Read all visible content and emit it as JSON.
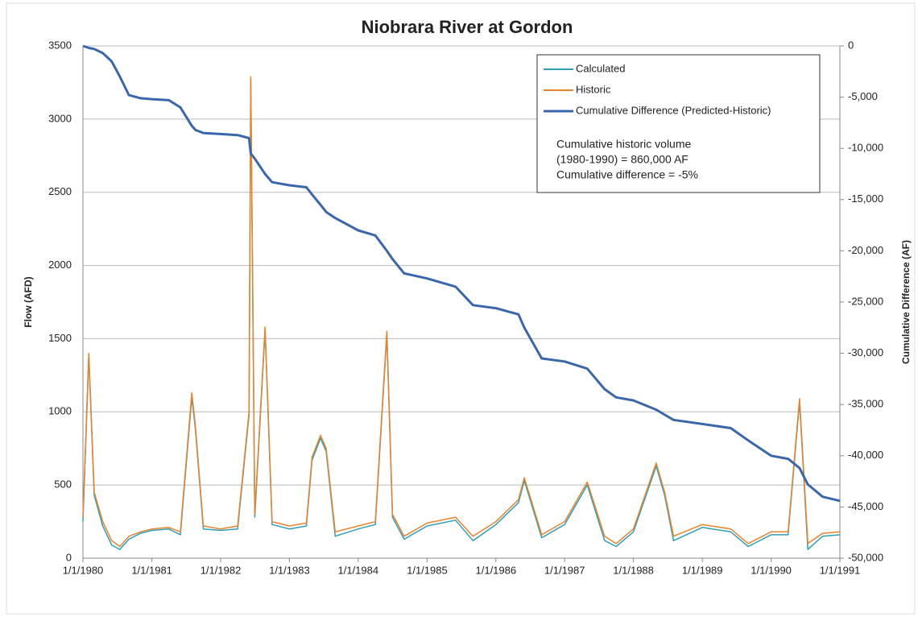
{
  "chart_data": {
    "type": "line",
    "title": "Niobrara River at Gordon",
    "ylabel": "Flow (AFD)",
    "y2label": "Cumulative Difference (AF)",
    "annotation": [
      "Cumulative historic volume",
      "(1980-1990) = 860,000 AF",
      "Cumulative difference = -5%"
    ],
    "legend": "upper right",
    "grid": true,
    "x": [
      "1/1/1980",
      "2/1/1980",
      "3/1/1980",
      "4/15/1980",
      "6/1/1980",
      "7/15/1980",
      "9/1/1980",
      "11/1/1980",
      "1/1/1981",
      "4/1/1981",
      "6/1/1981",
      "8/1/1981",
      "8/20/1981",
      "10/1/1981",
      "1/1/1982",
      "4/1/1982",
      "6/1/1982",
      "6/10/1982",
      "7/1/1982",
      "8/25/1982",
      "10/1/1982",
      "1/1/1983",
      "4/1/1983",
      "5/1/1983",
      "6/15/1983",
      "7/15/1983",
      "9/1/1983",
      "1/1/1984",
      "4/1/1984",
      "6/1/1984",
      "7/1/1984",
      "9/1/1984",
      "1/1/1985",
      "6/1/1985",
      "9/1/1985",
      "1/1/1986",
      "5/1/1986",
      "6/1/1986",
      "9/1/1986",
      "1/1/1987",
      "5/1/1987",
      "8/1/1987",
      "10/1/1987",
      "1/1/1988",
      "5/1/1988",
      "6/15/1988",
      "8/1/1988",
      "1/1/1989",
      "6/1/1989",
      "9/1/1989",
      "1/1/1990",
      "4/1/1990",
      "6/1/1990",
      "7/15/1990",
      "10/1/1990",
      "1/1/1991"
    ],
    "series": [
      {
        "name": "Calculated",
        "color": "#2e9fb5",
        "values": [
          250,
          1380,
          430,
          220,
          90,
          60,
          130,
          170,
          190,
          200,
          160,
          1100,
          880,
          200,
          190,
          200,
          980,
          3270,
          280,
          1560,
          230,
          200,
          220,
          670,
          820,
          730,
          150,
          200,
          230,
          1530,
          280,
          130,
          220,
          260,
          120,
          230,
          380,
          530,
          140,
          230,
          500,
          120,
          80,
          180,
          630,
          430,
          120,
          210,
          180,
          80,
          160,
          160,
          1070,
          60,
          150,
          160
        ]
      },
      {
        "name": "Historic",
        "color": "#e8832a",
        "values": [
          280,
          1400,
          450,
          250,
          120,
          80,
          150,
          180,
          200,
          210,
          180,
          1130,
          900,
          220,
          200,
          220,
          1000,
          3290,
          300,
          1580,
          250,
          220,
          240,
          690,
          840,
          750,
          180,
          220,
          250,
          1550,
          300,
          150,
          240,
          280,
          150,
          250,
          400,
          550,
          160,
          250,
          520,
          150,
          100,
          200,
          650,
          450,
          150,
          230,
          200,
          100,
          180,
          180,
          1090,
          100,
          170,
          180
        ]
      },
      {
        "name": "Cumulative Difference (Predicted-Historic)",
        "color": "#3a67ac",
        "axis": "y2",
        "values": [
          0,
          -200,
          -300,
          -700,
          -1500,
          -3000,
          -4800,
          -5100,
          -5200,
          -5300,
          -6000,
          -7800,
          -8200,
          -8500,
          -8600,
          -8700,
          -9000,
          -10500,
          -11000,
          -12500,
          -13300,
          -13600,
          -13800,
          -14500,
          -15500,
          -16200,
          -16800,
          -18000,
          -18500,
          -20000,
          -20800,
          -22200,
          -22700,
          -23500,
          -25300,
          -25600,
          -26200,
          -27500,
          -30500,
          -30800,
          -31500,
          -33500,
          -34300,
          -34600,
          -35500,
          -36000,
          -36500,
          -36900,
          -37300,
          -38500,
          -40000,
          -40300,
          -41200,
          -42800,
          -44000,
          -44400
        ]
      }
    ],
    "xlim": [
      "1/1/1980",
      "1/1/1991"
    ],
    "xticks": [
      "1/1/1980",
      "1/1/1981",
      "1/1/1982",
      "1/1/1983",
      "1/1/1984",
      "1/1/1985",
      "1/1/1986",
      "1/1/1987",
      "1/1/1988",
      "1/1/1989",
      "1/1/1990",
      "1/1/1991"
    ],
    "ylim": [
      0,
      3500
    ],
    "yticks": [
      0,
      500,
      1000,
      1500,
      2000,
      2500,
      3000,
      3500
    ],
    "y2lim": [
      -50000,
      0
    ],
    "y2ticks": [
      {
        "value": -50000,
        "label": "-50,000"
      },
      {
        "value": -45000,
        "label": "-45,000"
      },
      {
        "value": -40000,
        "label": "-40,000"
      },
      {
        "value": -35000,
        "label": "-35,000"
      },
      {
        "value": -30000,
        "label": "-30,000"
      },
      {
        "value": -25000,
        "label": "-25,000"
      },
      {
        "value": -20000,
        "label": "-20,000"
      },
      {
        "value": -15000,
        "label": "-15,000"
      },
      {
        "value": -10000,
        "label": "-10,000"
      },
      {
        "value": -5000,
        "label": "-5,000"
      },
      0
    ]
  }
}
